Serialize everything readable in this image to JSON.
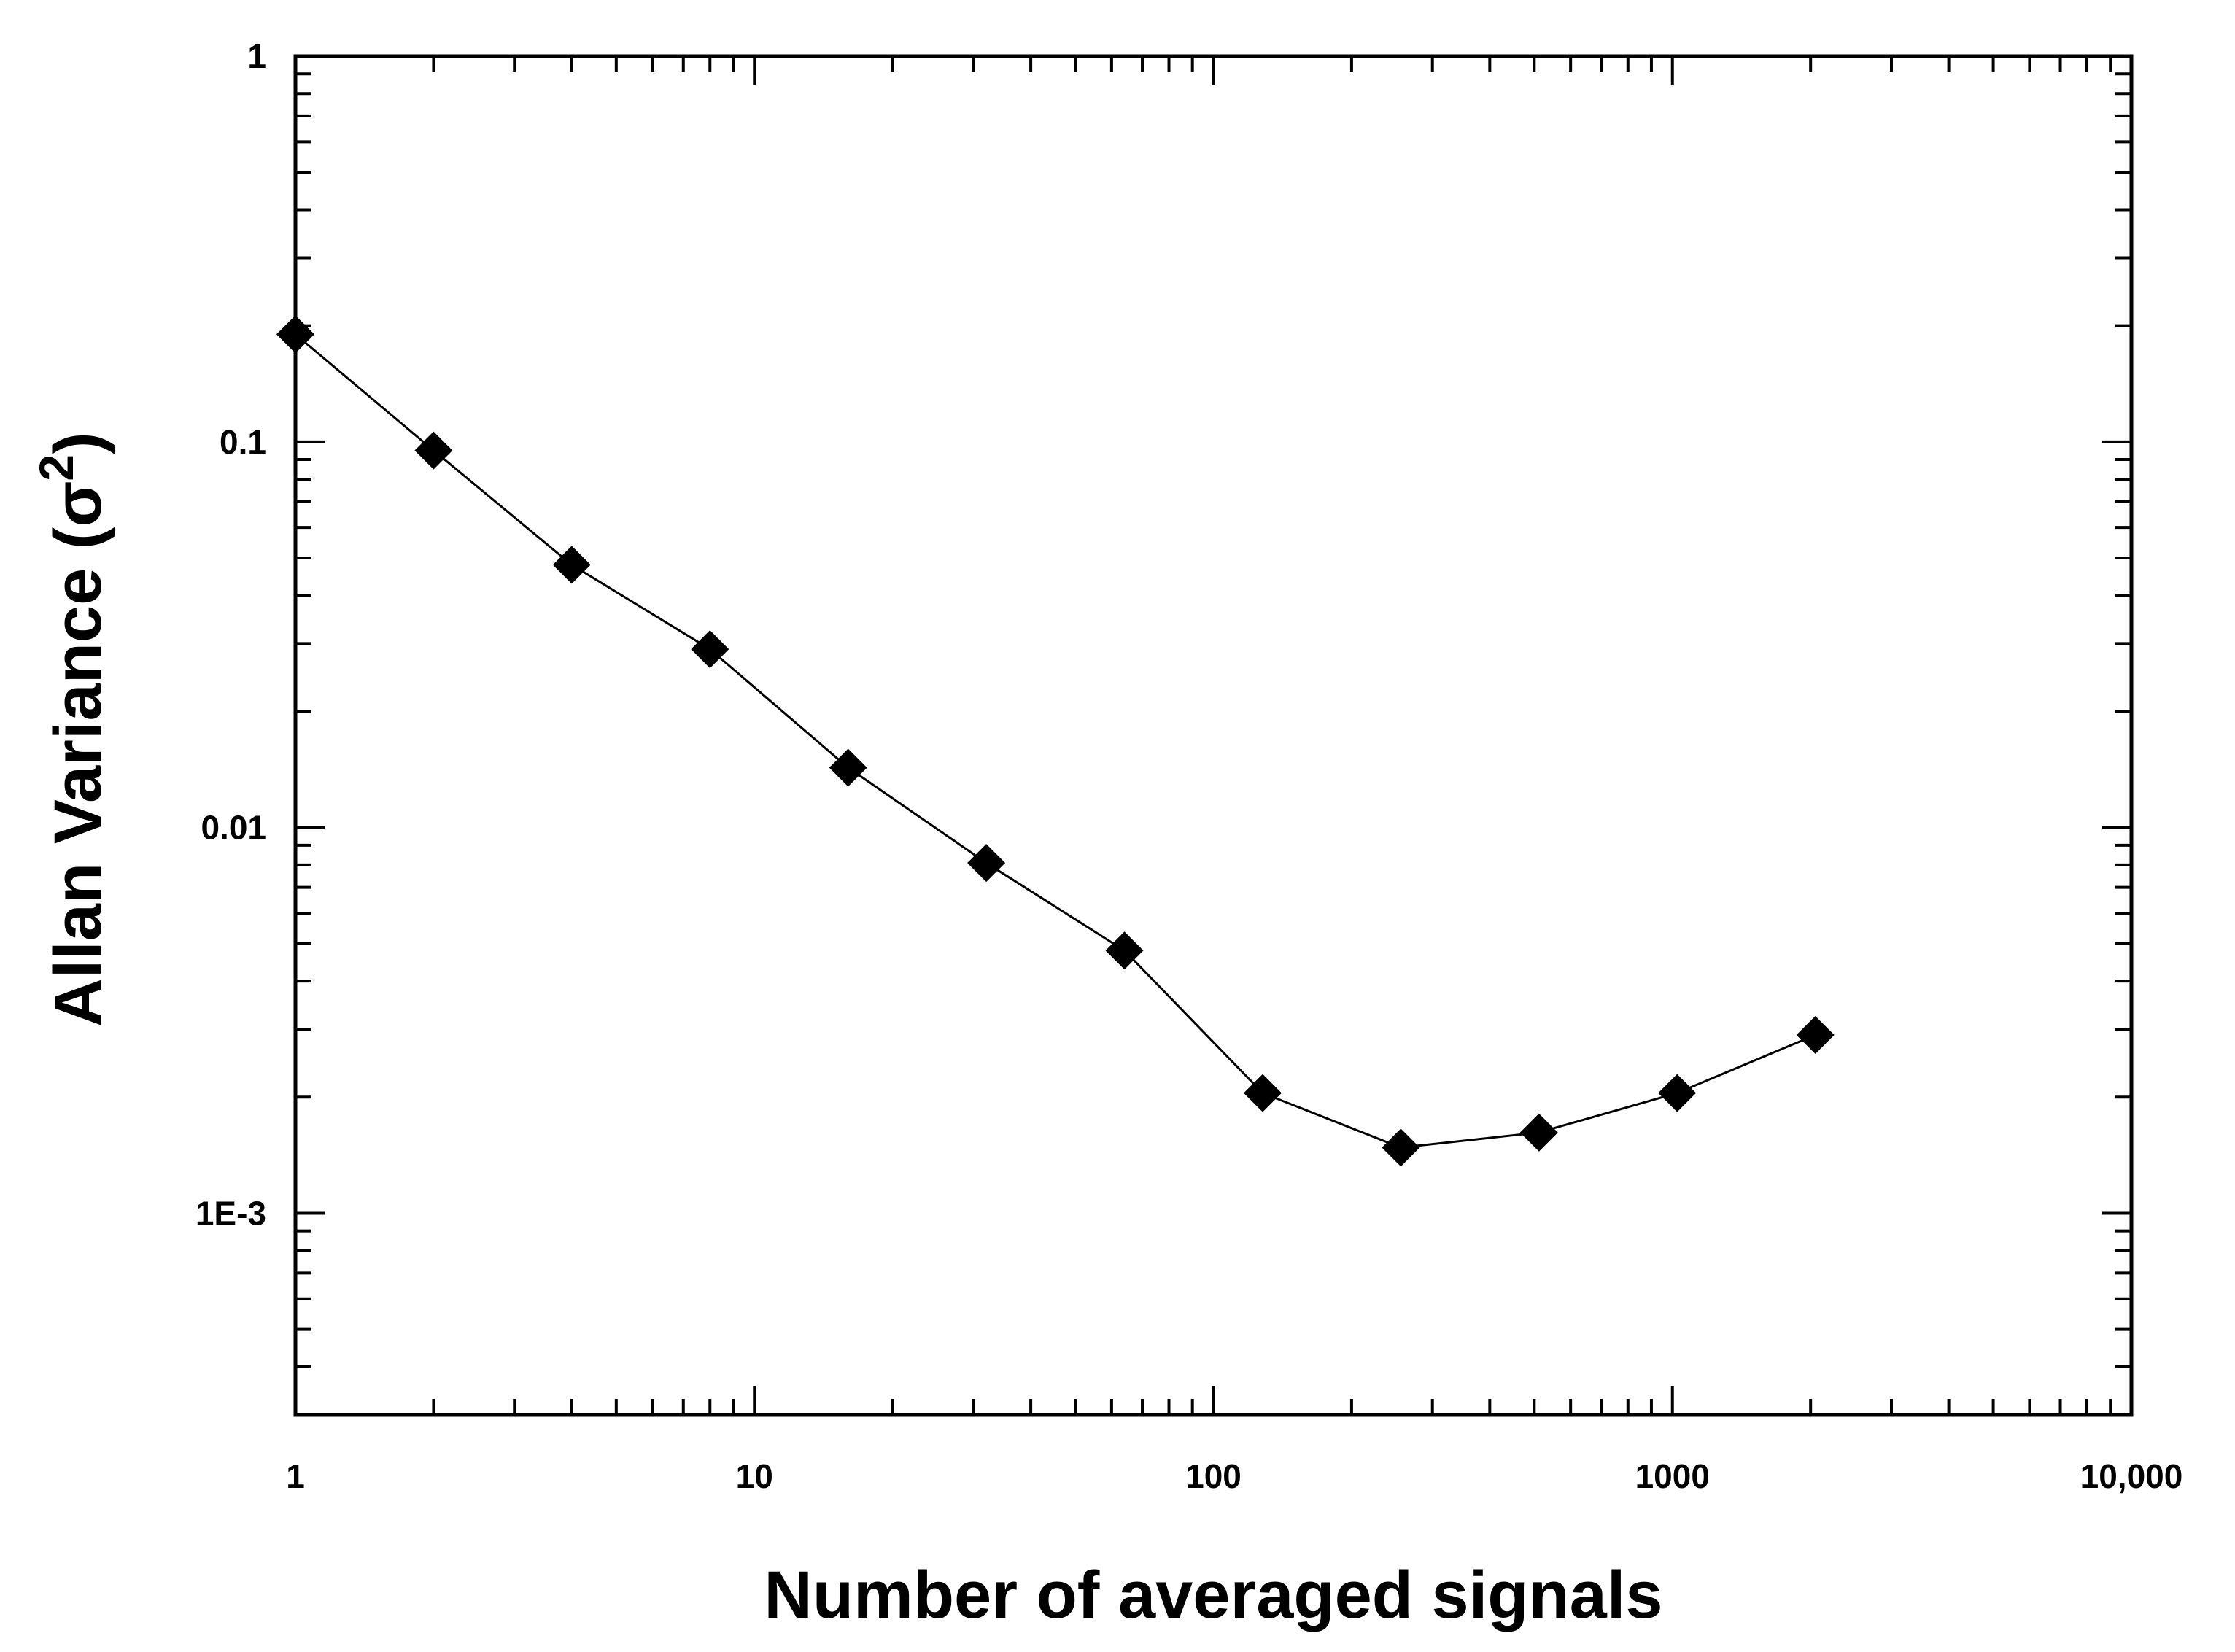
{
  "chart_data": {
    "type": "line",
    "xlabel": "Number of  averaged signals",
    "ylabel": {
      "text": "Allan Variance (",
      "symbol": "σ",
      "superscript": "2",
      "close": ")"
    },
    "x_scale": "log",
    "y_scale": "log",
    "xlim": [
      1,
      10000
    ],
    "ylim": [
      0.0003,
      1
    ],
    "x_ticks": [
      {
        "value": 1,
        "label": "1"
      },
      {
        "value": 10,
        "label": "10"
      },
      {
        "value": 100,
        "label": "100"
      },
      {
        "value": 1000,
        "label": "1000"
      },
      {
        "value": 10000,
        "label": "10,000"
      }
    ],
    "y_ticks": [
      {
        "value": 1,
        "label": "1"
      },
      {
        "value": 0.1,
        "label": "0.1"
      },
      {
        "value": 0.01,
        "label": "0.01"
      },
      {
        "value": 0.001,
        "label": "1E-3"
      }
    ],
    "grid": false,
    "legend": "none",
    "marker": "diamond",
    "color": "#000000",
    "series": [
      {
        "x": [
          1,
          2,
          4,
          8,
          16,
          32,
          64,
          128,
          256,
          512,
          1024,
          2048
        ],
        "y": [
          0.19,
          0.095,
          0.048,
          0.029,
          0.0143,
          0.0081,
          0.0048,
          0.00205,
          0.00148,
          0.00162,
          0.00205,
          0.0029
        ]
      }
    ]
  }
}
